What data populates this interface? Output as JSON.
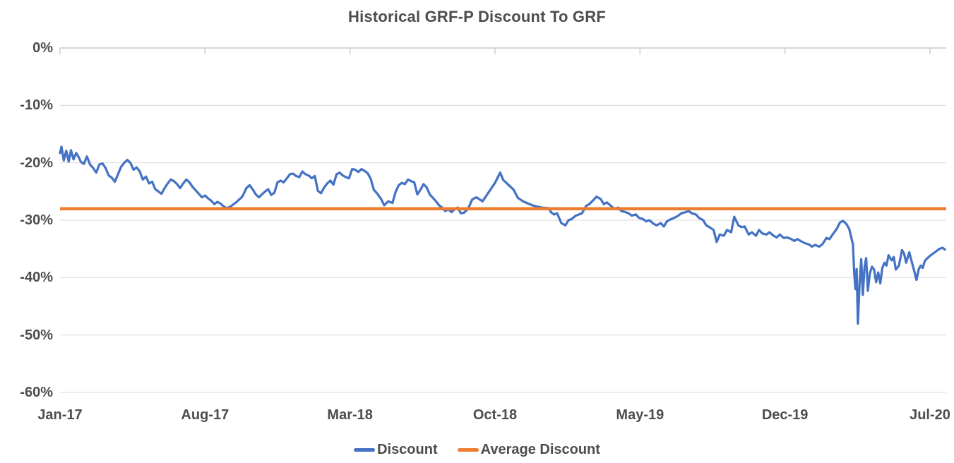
{
  "chart_data": {
    "type": "line",
    "title": "Historical GRF-P Discount To GRF",
    "grid": true,
    "x_axis": {
      "tick_labels": [
        "Jan-17",
        "Aug-17",
        "Mar-18",
        "Oct-18",
        "May-19",
        "Dec-19",
        "Jul-20"
      ],
      "tick_positions_months": [
        0,
        7,
        14,
        21,
        28,
        35,
        42
      ],
      "range_months": [
        0,
        42.75
      ]
    },
    "y_axis": {
      "unit": "percent",
      "tick_labels": [
        "0%",
        "-10%",
        "-20%",
        "-30%",
        "-40%",
        "-50%",
        "-60%"
      ],
      "tick_values": [
        0,
        -10,
        -20,
        -30,
        -40,
        -50,
        -60
      ],
      "range": [
        -60,
        0
      ]
    },
    "legend": {
      "position": "bottom",
      "entries": [
        {
          "label": "Discount",
          "color": "#4472C4"
        },
        {
          "label": "Average Discount",
          "color": "#ED7D31"
        }
      ]
    },
    "series": [
      {
        "name": "Discount",
        "color": "#4472C4",
        "x_unit": "months_since_Jan_2017",
        "points": [
          [
            0,
            -18.3
          ],
          [
            0.07,
            -17.2
          ],
          [
            0.18,
            -19.6
          ],
          [
            0.3,
            -17.9
          ],
          [
            0.42,
            -19.8
          ],
          [
            0.53,
            -17.8
          ],
          [
            0.65,
            -19.4
          ],
          [
            0.78,
            -18.3
          ],
          [
            0.9,
            -19.0
          ],
          [
            1.0,
            -19.8
          ],
          [
            1.15,
            -20.2
          ],
          [
            1.3,
            -18.9
          ],
          [
            1.45,
            -20.3
          ],
          [
            1.6,
            -20.9
          ],
          [
            1.75,
            -21.7
          ],
          [
            1.9,
            -20.3
          ],
          [
            2.05,
            -20.1
          ],
          [
            2.2,
            -20.9
          ],
          [
            2.35,
            -22.2
          ],
          [
            2.5,
            -22.6
          ],
          [
            2.65,
            -23.3
          ],
          [
            2.8,
            -22.0
          ],
          [
            2.95,
            -20.7
          ],
          [
            3.1,
            -20.0
          ],
          [
            3.25,
            -19.5
          ],
          [
            3.4,
            -20.0
          ],
          [
            3.55,
            -21.2
          ],
          [
            3.7,
            -20.8
          ],
          [
            3.85,
            -21.5
          ],
          [
            4.0,
            -22.9
          ],
          [
            4.15,
            -22.4
          ],
          [
            4.3,
            -23.6
          ],
          [
            4.45,
            -23.3
          ],
          [
            4.6,
            -24.6
          ],
          [
            4.75,
            -25.0
          ],
          [
            4.9,
            -25.4
          ],
          [
            5.05,
            -24.4
          ],
          [
            5.2,
            -23.6
          ],
          [
            5.35,
            -22.9
          ],
          [
            5.5,
            -23.2
          ],
          [
            5.65,
            -23.7
          ],
          [
            5.8,
            -24.4
          ],
          [
            5.95,
            -23.6
          ],
          [
            6.1,
            -22.9
          ],
          [
            6.25,
            -23.4
          ],
          [
            6.4,
            -24.2
          ],
          [
            6.55,
            -24.8
          ],
          [
            6.7,
            -25.4
          ],
          [
            6.85,
            -26.0
          ],
          [
            7.0,
            -25.7
          ],
          [
            7.15,
            -26.2
          ],
          [
            7.3,
            -26.6
          ],
          [
            7.45,
            -27.2
          ],
          [
            7.6,
            -26.8
          ],
          [
            7.75,
            -27.1
          ],
          [
            7.9,
            -27.6
          ],
          [
            8.05,
            -27.9
          ],
          [
            8.2,
            -27.7
          ],
          [
            8.35,
            -27.3
          ],
          [
            8.5,
            -26.9
          ],
          [
            8.65,
            -26.4
          ],
          [
            8.8,
            -25.9
          ],
          [
            9.0,
            -24.4
          ],
          [
            9.15,
            -23.9
          ],
          [
            9.3,
            -24.6
          ],
          [
            9.45,
            -25.5
          ],
          [
            9.6,
            -26.0
          ],
          [
            9.75,
            -25.5
          ],
          [
            9.9,
            -25.0
          ],
          [
            10.05,
            -24.6
          ],
          [
            10.2,
            -25.6
          ],
          [
            10.35,
            -25.2
          ],
          [
            10.5,
            -23.4
          ],
          [
            10.65,
            -23.1
          ],
          [
            10.8,
            -23.4
          ],
          [
            10.95,
            -22.7
          ],
          [
            11.1,
            -22.0
          ],
          [
            11.25,
            -21.9
          ],
          [
            11.4,
            -22.3
          ],
          [
            11.55,
            -22.5
          ],
          [
            11.7,
            -21.5
          ],
          [
            11.85,
            -22.0
          ],
          [
            12.0,
            -22.2
          ],
          [
            12.15,
            -22.7
          ],
          [
            12.3,
            -22.3
          ],
          [
            12.45,
            -24.9
          ],
          [
            12.6,
            -25.3
          ],
          [
            12.75,
            -24.3
          ],
          [
            12.9,
            -23.6
          ],
          [
            13.05,
            -23.1
          ],
          [
            13.2,
            -23.8
          ],
          [
            13.35,
            -22.0
          ],
          [
            13.5,
            -21.7
          ],
          [
            13.65,
            -22.2
          ],
          [
            13.8,
            -22.5
          ],
          [
            13.95,
            -22.7
          ],
          [
            14.1,
            -21.1
          ],
          [
            14.25,
            -21.2
          ],
          [
            14.4,
            -21.6
          ],
          [
            14.55,
            -21.1
          ],
          [
            14.7,
            -21.4
          ],
          [
            14.85,
            -21.8
          ],
          [
            15.0,
            -22.8
          ],
          [
            15.15,
            -24.7
          ],
          [
            15.3,
            -25.3
          ],
          [
            15.5,
            -26.3
          ],
          [
            15.65,
            -27.4
          ],
          [
            15.85,
            -26.7
          ],
          [
            16.05,
            -27.0
          ],
          [
            16.2,
            -25.1
          ],
          [
            16.35,
            -23.9
          ],
          [
            16.5,
            -23.5
          ],
          [
            16.65,
            -23.7
          ],
          [
            16.8,
            -22.9
          ],
          [
            16.95,
            -23.2
          ],
          [
            17.1,
            -23.4
          ],
          [
            17.25,
            -25.5
          ],
          [
            17.4,
            -24.7
          ],
          [
            17.55,
            -23.7
          ],
          [
            17.7,
            -24.3
          ],
          [
            17.85,
            -25.5
          ],
          [
            18.0,
            -26.1
          ],
          [
            18.15,
            -26.7
          ],
          [
            18.3,
            -27.4
          ],
          [
            18.45,
            -27.8
          ],
          [
            18.6,
            -28.4
          ],
          [
            18.75,
            -28.1
          ],
          [
            18.9,
            -28.6
          ],
          [
            19.05,
            -28.1
          ],
          [
            19.2,
            -27.8
          ],
          [
            19.35,
            -28.8
          ],
          [
            19.5,
            -28.7
          ],
          [
            19.7,
            -28.0
          ],
          [
            19.9,
            -26.4
          ],
          [
            20.1,
            -26.0
          ],
          [
            20.4,
            -26.7
          ],
          [
            20.7,
            -25.1
          ],
          [
            21.0,
            -23.5
          ],
          [
            21.25,
            -21.7
          ],
          [
            21.4,
            -23.0
          ],
          [
            21.55,
            -23.5
          ],
          [
            21.9,
            -24.7
          ],
          [
            22.1,
            -26.1
          ],
          [
            22.35,
            -26.7
          ],
          [
            22.8,
            -27.4
          ],
          [
            23.25,
            -27.8
          ],
          [
            23.6,
            -27.9
          ],
          [
            23.7,
            -28.6
          ],
          [
            23.85,
            -29.0
          ],
          [
            24.0,
            -28.8
          ],
          [
            24.2,
            -30.5
          ],
          [
            24.4,
            -30.9
          ],
          [
            24.55,
            -30.0
          ],
          [
            24.7,
            -29.8
          ],
          [
            24.9,
            -29.2
          ],
          [
            25.05,
            -29.0
          ],
          [
            25.2,
            -28.8
          ],
          [
            25.4,
            -27.5
          ],
          [
            25.55,
            -27.2
          ],
          [
            25.75,
            -26.5
          ],
          [
            25.9,
            -25.9
          ],
          [
            26.1,
            -26.3
          ],
          [
            26.25,
            -27.2
          ],
          [
            26.4,
            -26.9
          ],
          [
            26.6,
            -27.5
          ],
          [
            26.75,
            -28.0
          ],
          [
            26.95,
            -27.8
          ],
          [
            27.1,
            -28.4
          ],
          [
            27.3,
            -28.6
          ],
          [
            27.45,
            -28.8
          ],
          [
            27.6,
            -29.2
          ],
          [
            27.8,
            -29.0
          ],
          [
            27.95,
            -29.6
          ],
          [
            28.15,
            -29.8
          ],
          [
            28.3,
            -30.2
          ],
          [
            28.45,
            -30.0
          ],
          [
            28.65,
            -30.6
          ],
          [
            28.8,
            -30.9
          ],
          [
            29.0,
            -30.5
          ],
          [
            29.15,
            -31.1
          ],
          [
            29.3,
            -30.2
          ],
          [
            29.5,
            -29.8
          ],
          [
            29.65,
            -29.6
          ],
          [
            29.85,
            -29.2
          ],
          [
            30.0,
            -28.8
          ],
          [
            30.2,
            -28.6
          ],
          [
            30.35,
            -28.4
          ],
          [
            30.5,
            -28.8
          ],
          [
            30.7,
            -29.0
          ],
          [
            30.85,
            -29.6
          ],
          [
            31.05,
            -30.0
          ],
          [
            31.2,
            -30.9
          ],
          [
            31.35,
            -31.2
          ],
          [
            31.55,
            -31.7
          ],
          [
            31.7,
            -33.8
          ],
          [
            31.85,
            -32.5
          ],
          [
            32.05,
            -32.7
          ],
          [
            32.2,
            -31.7
          ],
          [
            32.4,
            -32.1
          ],
          [
            32.55,
            -29.4
          ],
          [
            32.75,
            -30.9
          ],
          [
            32.9,
            -31.2
          ],
          [
            33.05,
            -31.1
          ],
          [
            33.25,
            -32.5
          ],
          [
            33.4,
            -32.1
          ],
          [
            33.6,
            -32.7
          ],
          [
            33.75,
            -31.7
          ],
          [
            33.9,
            -32.3
          ],
          [
            34.1,
            -32.5
          ],
          [
            34.25,
            -32.1
          ],
          [
            34.45,
            -32.7
          ],
          [
            34.6,
            -33.0
          ],
          [
            34.75,
            -32.5
          ],
          [
            34.95,
            -33.1
          ],
          [
            35.1,
            -33.0
          ],
          [
            35.3,
            -33.3
          ],
          [
            35.45,
            -33.6
          ],
          [
            35.6,
            -33.3
          ],
          [
            35.8,
            -33.7
          ],
          [
            35.95,
            -34.0
          ],
          [
            36.15,
            -34.2
          ],
          [
            36.3,
            -34.6
          ],
          [
            36.45,
            -34.3
          ],
          [
            36.65,
            -34.6
          ],
          [
            36.8,
            -34.2
          ],
          [
            37.0,
            -33.1
          ],
          [
            37.15,
            -33.3
          ],
          [
            37.3,
            -32.5
          ],
          [
            37.5,
            -31.5
          ],
          [
            37.65,
            -30.4
          ],
          [
            37.8,
            -30.1
          ],
          [
            37.95,
            -30.6
          ],
          [
            38.1,
            -31.5
          ],
          [
            38.2,
            -33.0
          ],
          [
            38.28,
            -34.2
          ],
          [
            38.34,
            -39.0
          ],
          [
            38.4,
            -42.0
          ],
          [
            38.46,
            -38.5
          ],
          [
            38.52,
            -48.0
          ],
          [
            38.6,
            -41.0
          ],
          [
            38.68,
            -36.8
          ],
          [
            38.76,
            -43.0
          ],
          [
            38.84,
            -38.2
          ],
          [
            38.92,
            -36.6
          ],
          [
            39.0,
            -42.3
          ],
          [
            39.1,
            -39.2
          ],
          [
            39.2,
            -38.1
          ],
          [
            39.3,
            -38.6
          ],
          [
            39.4,
            -40.8
          ],
          [
            39.5,
            -39.1
          ],
          [
            39.6,
            -41.0
          ],
          [
            39.7,
            -38.3
          ],
          [
            39.8,
            -37.4
          ],
          [
            39.9,
            -37.9
          ],
          [
            40.0,
            -36.1
          ],
          [
            40.15,
            -37.0
          ],
          [
            40.25,
            -36.4
          ],
          [
            40.35,
            -38.6
          ],
          [
            40.5,
            -37.9
          ],
          [
            40.65,
            -35.2
          ],
          [
            40.75,
            -35.8
          ],
          [
            40.85,
            -37.4
          ],
          [
            41.0,
            -35.6
          ],
          [
            41.1,
            -37.0
          ],
          [
            41.2,
            -38.3
          ],
          [
            41.35,
            -40.4
          ],
          [
            41.45,
            -38.6
          ],
          [
            41.55,
            -37.9
          ],
          [
            41.65,
            -38.3
          ],
          [
            41.75,
            -37.1
          ],
          [
            41.85,
            -36.7
          ],
          [
            42.0,
            -36.2
          ],
          [
            42.15,
            -35.8
          ],
          [
            42.3,
            -35.4
          ],
          [
            42.45,
            -35.0
          ],
          [
            42.6,
            -34.8
          ],
          [
            42.72,
            -35.1
          ]
        ]
      },
      {
        "name": "Average Discount",
        "color": "#ED7D31",
        "type": "constant",
        "value": -28.0
      }
    ]
  }
}
